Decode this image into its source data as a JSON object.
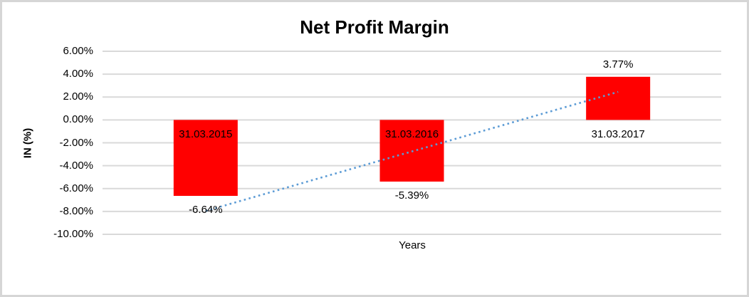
{
  "chart_data": {
    "type": "bar",
    "title": "Net Profit Margin",
    "xlabel": "Years",
    "ylabel": "IN (%)",
    "categories": [
      "31.03.2015",
      "31.03.2016",
      "31.03.2017"
    ],
    "values": [
      -6.64,
      -5.39,
      3.77
    ],
    "data_labels": [
      "-6.64%",
      "-5.39%",
      "3.77%"
    ],
    "ylim": [
      -10,
      6
    ],
    "ytick_step": 2,
    "ytick_labels": [
      "6.00%",
      "4.00%",
      "2.00%",
      "0.00%",
      "-2.00%",
      "-4.00%",
      "-6.00%",
      "-8.00%",
      "-10.00%"
    ],
    "grid": true,
    "legend": "none",
    "bar_color": "#ff0000",
    "gridline_color": "#d9d9d9",
    "trendline": {
      "style": "dotted",
      "color": "#5b9bd5",
      "start_value": -7.96,
      "end_value": 2.45
    }
  }
}
